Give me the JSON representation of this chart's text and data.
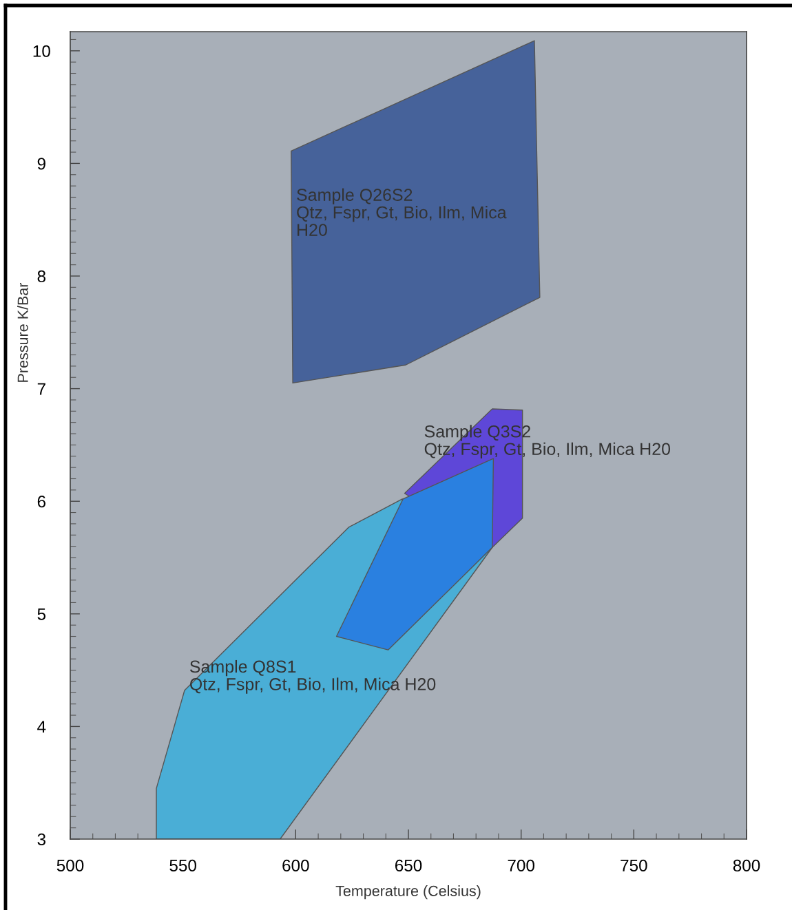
{
  "chart_data": {
    "type": "area",
    "xlabel": "Temperature (Celsius)",
    "ylabel": "Pressure K/Bar",
    "xlim": [
      500,
      800
    ],
    "ylim": [
      3,
      10.17
    ],
    "xticks": [
      500,
      550,
      600,
      650,
      700,
      750,
      800
    ],
    "yticks": [
      3,
      4,
      5,
      6,
      7,
      8,
      9,
      10
    ],
    "series": [
      {
        "color": "#4aaed6",
        "x": [
          538.2,
          538.2,
          550.7,
          623.6,
          647.3,
          687.2,
          593.1
        ],
        "values": [
          3.0,
          3.45,
          4.32,
          5.77,
          6.02,
          5.59,
          3.0
        ]
      },
      {
        "color": "#5e47d8",
        "x": [
          648.3,
          687.2,
          700.6,
          700.6,
          687.2
        ],
        "values": [
          6.07,
          6.82,
          6.81,
          5.85,
          5.59
        ]
      },
      {
        "color": "#2a80e0",
        "x": [
          647.6,
          687.7,
          687.2,
          641.0,
          618.1
        ],
        "values": [
          6.02,
          6.38,
          5.59,
          4.68,
          4.8
        ]
      },
      {
        "color": "#46629a",
        "x": [
          598.0,
          705.9,
          708.3,
          648.8,
          598.7
        ],
        "values": [
          9.11,
          10.09,
          7.81,
          7.21,
          7.05
        ]
      }
    ],
    "annotations": [
      "Sample Q26S2\nQtz, Fspr, Gt, Bio, Ilm, Mica\nH20",
      "Sample Q3S2\nQtz, Fspr, Gt, Bio, Ilm, Mica H20",
      "Sample Q8S1\nQtz, Fspr, Gt, Bio, Ilm, Mica H20"
    ]
  }
}
